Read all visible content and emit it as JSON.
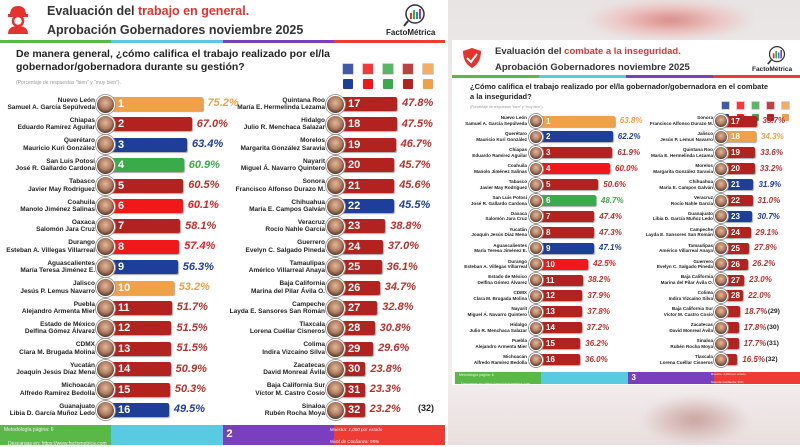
{
  "party_colors": {
    "PAN": "#1e3f99",
    "PRI": "#f01818",
    "PVEM": "#3aab49",
    "MORENA": "#b2231f",
    "MC": "#f0a046"
  },
  "legend_icons": [
    "pan-logo-icon",
    "pri-logo-icon",
    "pvem-logo-icon",
    "morena-logo-icon",
    "mc-logo-icon"
  ],
  "legend_parties": [
    "PAN",
    "PRI",
    "PVEM",
    "MORENA",
    "MC"
  ],
  "left": {
    "title_prefix": "Evaluación del ",
    "title_highlight": "trabajo en general.",
    "subtitle": "Aprobación Gobernadores noviembre 2025",
    "brand": "FactoMétrica",
    "question": "De manera general, ¿cómo califica el trabajo realizado por el/la gobernador/gobernadora durante su gestión?",
    "note": "(Porcentaje de respuestas \"bien\" y \"muy bien\").",
    "total_label": "(32)",
    "footer": {
      "methodology": "Metodología página: 6",
      "download": "Descargas en: https://www.factometrica.com",
      "page": "2",
      "sample": "Muestra: 1,000 por estado",
      "confidence": "Nivel de Confianza: 95%"
    }
  },
  "right": {
    "title_prefix": "Evaluación del ",
    "title_highlight": "combate a la inseguridad.",
    "subtitle": "Aprobación Gobernadores noviembre 2025",
    "brand": "FactoMétrica",
    "question": "¿Cómo califica el trabajo realizado por el/la gobernador/gobernadora en el combate a la inseguridad?",
    "note": "(Porcentaje de respuestas \"bien\" y \"muy bien\").",
    "footer": {
      "methodology": "Metodología página: 6",
      "download": "Descargas en: https://www.factometrica.com",
      "page": "3",
      "sample": "Muestra: 1,000 por estado",
      "confidence": "Nivel de Confianza: 95%",
      "error": "Margen de error: ± 3.1%"
    }
  },
  "chart_data": [
    {
      "type": "bar",
      "title": "Evaluación del trabajo en general. Aprobación Gobernadores noviembre 2025",
      "unit": "%",
      "rows": [
        {
          "rank": 1,
          "state": "Nuevo León",
          "governor": "Samuel A. García Sepúlveda",
          "value": 75.2,
          "party": "MC"
        },
        {
          "rank": 2,
          "state": "Chiapas",
          "governor": "Eduardo Ramírez Aguilar",
          "value": 67.0,
          "party": "MORENA"
        },
        {
          "rank": 3,
          "state": "Querétaro",
          "governor": "Mauricio Kuri González",
          "value": 63.4,
          "party": "PAN"
        },
        {
          "rank": 4,
          "state": "San Luis Potosí",
          "governor": "José R. Gallardo Cardona",
          "value": 60.9,
          "party": "PVEM"
        },
        {
          "rank": 5,
          "state": "Tabasco",
          "governor": "Javier May Rodríguez",
          "value": 60.5,
          "party": "MORENA"
        },
        {
          "rank": 6,
          "state": "Coahuila",
          "governor": "Manolo Jiménez Salinas",
          "value": 60.1,
          "party": "PRI"
        },
        {
          "rank": 7,
          "state": "Oaxaca",
          "governor": "Salomón Jara Cruz",
          "value": 58.1,
          "party": "MORENA"
        },
        {
          "rank": 8,
          "state": "Durango",
          "governor": "Esteban A. Villegas Villarreal",
          "value": 57.4,
          "party": "PRI"
        },
        {
          "rank": 9,
          "state": "Aguascalientes",
          "governor": "María Teresa Jiménez E.",
          "value": 56.3,
          "party": "PAN"
        },
        {
          "rank": 10,
          "state": "Jalisco",
          "governor": "Jesús P. Lemus Navarro",
          "value": 53.2,
          "party": "MC"
        },
        {
          "rank": 11,
          "state": "Puebla",
          "governor": "Alejandro Armenta Mier",
          "value": 51.7,
          "party": "MORENA"
        },
        {
          "rank": 12,
          "state": "Estado de México",
          "governor": "Delfina Gómez Álvarez",
          "value": 51.5,
          "party": "MORENA"
        },
        {
          "rank": 13,
          "state": "CDMX",
          "governor": "Clara M. Brugada Molina",
          "value": 51.5,
          "party": "MORENA"
        },
        {
          "rank": 14,
          "state": "Yucatán",
          "governor": "Joaquín Jesús Díaz Mena",
          "value": 50.9,
          "party": "MORENA"
        },
        {
          "rank": 15,
          "state": "Michoacán",
          "governor": "Alfredo Ramírez Bedolla",
          "value": 50.3,
          "party": "MORENA"
        },
        {
          "rank": 16,
          "state": "Guanajuato",
          "governor": "Libia D. García Muñoz Ledo",
          "value": 49.5,
          "party": "PAN"
        },
        {
          "rank": 17,
          "state": "Quintana Roo",
          "governor": "María E. Hermelinda Lezama",
          "value": 47.8,
          "party": "MORENA"
        },
        {
          "rank": 18,
          "state": "Hidalgo",
          "governor": "Julio R. Menchaca Salazar",
          "value": 47.5,
          "party": "MORENA"
        },
        {
          "rank": 19,
          "state": "Morelos",
          "governor": "Margarita González Saravia",
          "value": 46.7,
          "party": "MORENA"
        },
        {
          "rank": 20,
          "state": "Nayarit",
          "governor": "Miguel Á. Navarro Quintero",
          "value": 45.7,
          "party": "MORENA"
        },
        {
          "rank": 21,
          "state": "Sonora",
          "governor": "Francisco Alfonso Durazo M.",
          "value": 45.6,
          "party": "MORENA"
        },
        {
          "rank": 22,
          "state": "Chihuahua",
          "governor": "María E. Campos Galván",
          "value": 45.5,
          "party": "PAN"
        },
        {
          "rank": 23,
          "state": "Veracruz",
          "governor": "Rocío Nahle García",
          "value": 38.8,
          "party": "MORENA"
        },
        {
          "rank": 24,
          "state": "Guerrero",
          "governor": "Evelyn C. Salgado Pineda",
          "value": 37.0,
          "party": "MORENA"
        },
        {
          "rank": 25,
          "state": "Tamaulipas",
          "governor": "Américo Villarreal Anaya",
          "value": 36.1,
          "party": "MORENA"
        },
        {
          "rank": 26,
          "state": "Baja California",
          "governor": "Marina del Pilar Ávila O.",
          "value": 34.7,
          "party": "MORENA"
        },
        {
          "rank": 27,
          "state": "Campeche",
          "governor": "Layda E. Sansores San Román",
          "value": 32.8,
          "party": "MORENA"
        },
        {
          "rank": 28,
          "state": "Tlaxcala",
          "governor": "Lorena Cuéllar Cisneros",
          "value": 30.8,
          "party": "MORENA"
        },
        {
          "rank": 29,
          "state": "Colima",
          "governor": "Indira Vizcaíno Silva",
          "value": 29.6,
          "party": "MORENA"
        },
        {
          "rank": 30,
          "state": "Zacatecas",
          "governor": "David Monreal Ávila",
          "value": 23.8,
          "party": "MORENA"
        },
        {
          "rank": 31,
          "state": "Baja California Sur",
          "governor": "Víctor M. Castro Cosío",
          "value": 23.3,
          "party": "MORENA"
        },
        {
          "rank": 32,
          "state": "Sinaloa",
          "governor": "Rubén Rocha Moya",
          "value": 23.2,
          "party": "MORENA"
        }
      ]
    },
    {
      "type": "bar",
      "title": "Evaluación del combate a la inseguridad. Aprobación Gobernadores noviembre 2025",
      "unit": "%",
      "rows": [
        {
          "rank": 1,
          "state": "Nuevo León",
          "governor": "Samuel A. García Sepúlveda",
          "value": 63.8,
          "party": "MC"
        },
        {
          "rank": 2,
          "state": "Querétaro",
          "governor": "Mauricio Kuri González",
          "value": 62.2,
          "party": "PAN"
        },
        {
          "rank": 3,
          "state": "Chiapas",
          "governor": "Eduardo Ramírez Aguilar",
          "value": 61.9,
          "party": "MORENA"
        },
        {
          "rank": 4,
          "state": "Coahuila",
          "governor": "Manolo Jiménez Salinas",
          "value": 60.0,
          "party": "PRI"
        },
        {
          "rank": 5,
          "state": "Tabasco",
          "governor": "Javier May Rodríguez",
          "value": 50.6,
          "party": "MORENA"
        },
        {
          "rank": 6,
          "state": "San Luis Potosí",
          "governor": "José R. Gallardo Cardona",
          "value": 48.7,
          "party": "PVEM"
        },
        {
          "rank": 7,
          "state": "Oaxaca",
          "governor": "Salomón Jara Cruz",
          "value": 47.4,
          "party": "MORENA"
        },
        {
          "rank": 8,
          "state": "Yucatán",
          "governor": "Joaquín Jesús Díaz Mena",
          "value": 47.3,
          "party": "MORENA"
        },
        {
          "rank": 9,
          "state": "Aguascalientes",
          "governor": "María Teresa Jiménez E.",
          "value": 47.1,
          "party": "PAN"
        },
        {
          "rank": 10,
          "state": "Durango",
          "governor": "Esteban A. Villegas Villarreal",
          "value": 42.5,
          "party": "PRI"
        },
        {
          "rank": 11,
          "state": "Estado de México",
          "governor": "Delfina Gómez Álvarez",
          "value": 38.2,
          "party": "MORENA"
        },
        {
          "rank": 12,
          "state": "CDMX",
          "governor": "Clara M. Brugada Molina",
          "value": 37.9,
          "party": "MORENA"
        },
        {
          "rank": 13,
          "state": "Nayarit",
          "governor": "Miguel Á. Navarro Quintero",
          "value": 37.8,
          "party": "MORENA"
        },
        {
          "rank": 14,
          "state": "Hidalgo",
          "governor": "Julio R. Menchaca Salazar",
          "value": 37.2,
          "party": "MORENA"
        },
        {
          "rank": 15,
          "state": "Puebla",
          "governor": "Alejandro Armenta Mier",
          "value": 36.2,
          "party": "MORENA"
        },
        {
          "rank": 16,
          "state": "Michoacán",
          "governor": "Alfredo Ramírez Bedolla",
          "value": 36.0,
          "party": "MORENA"
        },
        {
          "rank": 17,
          "state": "Sonora",
          "governor": "Francisco Alfonso Durazo M.",
          "value": 35.7,
          "party": "MORENA"
        },
        {
          "rank": 18,
          "state": "Jalisco",
          "governor": "Jesús P. Lemus Navarro",
          "value": 34.3,
          "party": "MC"
        },
        {
          "rank": 19,
          "state": "Quintana Roo",
          "governor": "María E. Hermelinda Lezama",
          "value": 33.6,
          "party": "MORENA"
        },
        {
          "rank": 20,
          "state": "Morelos",
          "governor": "Margarita González Saravia",
          "value": 33.2,
          "party": "MORENA"
        },
        {
          "rank": 21,
          "state": "Chihuahua",
          "governor": "María E. Campos Galván",
          "value": 31.9,
          "party": "PAN"
        },
        {
          "rank": 22,
          "state": "Veracruz",
          "governor": "Rocío Nahle García",
          "value": 31.0,
          "party": "MORENA"
        },
        {
          "rank": 23,
          "state": "Guanajuato",
          "governor": "Libia D. García Muñoz Ledo",
          "value": 30.7,
          "party": "PAN"
        },
        {
          "rank": 24,
          "state": "Campeche",
          "governor": "Layda E. Sansores San Román",
          "value": 29.1,
          "party": "MORENA"
        },
        {
          "rank": 25,
          "state": "Tamaulipas",
          "governor": "Américo Villarreal Anaya",
          "value": 27.8,
          "party": "MORENA"
        },
        {
          "rank": 26,
          "state": "Guerrero",
          "governor": "Evelyn C. Salgado Pineda",
          "value": 26.2,
          "party": "MORENA"
        },
        {
          "rank": 27,
          "state": "Baja California",
          "governor": "Marina del Pilar Ávila O.",
          "value": 23.0,
          "party": "MORENA"
        },
        {
          "rank": 28,
          "state": "Colima",
          "governor": "Indira Vizcaíno Silva",
          "value": 22.0,
          "party": "MORENA"
        },
        {
          "rank": 29,
          "state": "Baja California Sur",
          "governor": "Víctor M. Castro Cosío",
          "value": 18.7,
          "party": "MORENA",
          "rank_outside": true
        },
        {
          "rank": 30,
          "state": "Zacatecas",
          "governor": "David Monreal Ávila",
          "value": 17.8,
          "party": "MORENA",
          "rank_outside": true
        },
        {
          "rank": 31,
          "state": "Sinaloa",
          "governor": "Rubén Rocha Moya",
          "value": 17.7,
          "party": "MORENA",
          "rank_outside": true
        },
        {
          "rank": 32,
          "state": "Tlaxcala",
          "governor": "Lorena Cuéllar Cisneros",
          "value": 16.5,
          "party": "MORENA",
          "rank_outside": true
        }
      ]
    }
  ]
}
